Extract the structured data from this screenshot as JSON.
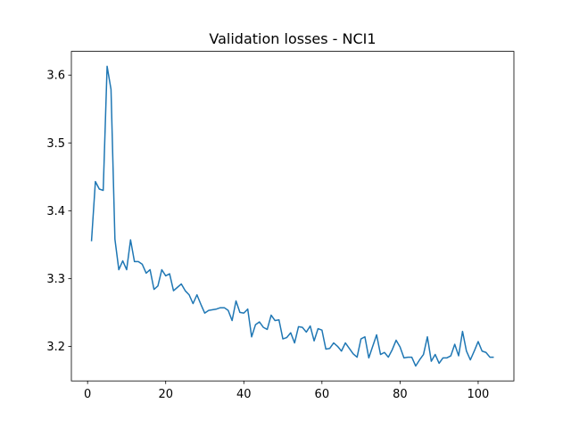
{
  "chart_data": {
    "type": "line",
    "title": "Validation losses - NCI1",
    "x": [
      1,
      2,
      3,
      4,
      5,
      6,
      7,
      8,
      9,
      10,
      11,
      12,
      13,
      14,
      15,
      16,
      17,
      18,
      19,
      20,
      21,
      22,
      23,
      24,
      25,
      26,
      27,
      28,
      29,
      30,
      31,
      32,
      33,
      34,
      35,
      36,
      37,
      38,
      39,
      40,
      41,
      42,
      43,
      44,
      45,
      46,
      47,
      48,
      49,
      50,
      51,
      52,
      53,
      54,
      55,
      56,
      57,
      58,
      59,
      60,
      61,
      62,
      63,
      64,
      65,
      66,
      67,
      68,
      69,
      70,
      71,
      72,
      73,
      74,
      75,
      76,
      77,
      78,
      79,
      80,
      81,
      82,
      83,
      84,
      85,
      86,
      87,
      88,
      89,
      90,
      91,
      92,
      93,
      94,
      95,
      96,
      97,
      98,
      99,
      100,
      101,
      102,
      103,
      104
    ],
    "series": [
      {
        "color": "#1f77b4",
        "values": [
          3.355,
          3.443,
          3.432,
          3.43,
          3.613,
          3.579,
          3.358,
          3.313,
          3.326,
          3.313,
          3.357,
          3.325,
          3.325,
          3.321,
          3.308,
          3.313,
          3.284,
          3.289,
          3.313,
          3.304,
          3.307,
          3.282,
          3.287,
          3.292,
          3.282,
          3.276,
          3.263,
          3.276,
          3.262,
          3.249,
          3.253,
          3.254,
          3.255,
          3.257,
          3.257,
          3.253,
          3.238,
          3.267,
          3.25,
          3.249,
          3.255,
          3.214,
          3.232,
          3.236,
          3.228,
          3.225,
          3.246,
          3.238,
          3.239,
          3.211,
          3.213,
          3.22,
          3.205,
          3.229,
          3.228,
          3.221,
          3.23,
          3.208,
          3.226,
          3.224,
          3.196,
          3.197,
          3.205,
          3.2,
          3.193,
          3.205,
          3.197,
          3.189,
          3.184,
          3.211,
          3.214,
          3.183,
          3.2,
          3.217,
          3.188,
          3.191,
          3.184,
          3.195,
          3.209,
          3.199,
          3.183,
          3.184,
          3.184,
          3.171,
          3.18,
          3.188,
          3.214,
          3.178,
          3.188,
          3.175,
          3.183,
          3.183,
          3.186,
          3.203,
          3.186,
          3.222,
          3.193,
          3.18,
          3.193,
          3.207,
          3.193,
          3.191,
          3.184,
          3.184
        ]
      }
    ],
    "xlim": [
      -4.15,
      109.15
    ],
    "xticks": [
      0,
      20,
      40,
      60,
      80,
      100
    ],
    "ylim": [
      3.149,
      3.635
    ],
    "yticks": [
      3.2,
      3.3,
      3.4,
      3.5,
      3.6
    ],
    "grid": false
  }
}
